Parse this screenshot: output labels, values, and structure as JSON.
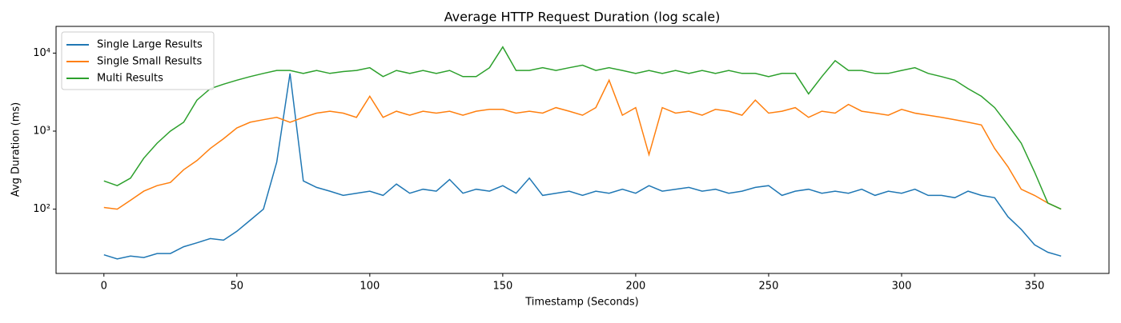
{
  "chart_data": {
    "type": "line",
    "title": "Average HTTP Request Duration (log scale)",
    "x_label": "Timestamp (Seconds)",
    "y_label": "Avg Duration (ms)",
    "x": [
      0,
      5,
      10,
      15,
      20,
      25,
      30,
      35,
      40,
      45,
      50,
      55,
      60,
      65,
      70,
      75,
      80,
      85,
      90,
      95,
      100,
      105,
      110,
      115,
      120,
      125,
      130,
      135,
      140,
      145,
      150,
      155,
      160,
      165,
      170,
      175,
      180,
      185,
      190,
      195,
      200,
      205,
      210,
      215,
      220,
      225,
      230,
      235,
      240,
      245,
      250,
      255,
      260,
      265,
      270,
      275,
      280,
      285,
      290,
      295,
      300,
      305,
      310,
      315,
      320,
      325,
      330,
      335,
      340,
      345,
      350,
      355,
      360
    ],
    "series": [
      {
        "name": "Single Large Results",
        "color": "#1f77b4",
        "values": [
          26,
          23,
          25,
          24,
          27,
          27,
          33,
          37,
          42,
          40,
          52,
          72,
          100,
          400,
          5500,
          230,
          190,
          170,
          150,
          160,
          170,
          150,
          210,
          160,
          180,
          170,
          240,
          160,
          180,
          170,
          200,
          160,
          250,
          150,
          160,
          170,
          150,
          170,
          160,
          180,
          160,
          200,
          170,
          180,
          190,
          170,
          180,
          160,
          170,
          190,
          200,
          150,
          170,
          180,
          160,
          170,
          160,
          180,
          150,
          170,
          160,
          180,
          150,
          150,
          140,
          170,
          150,
          140,
          80,
          55,
          35,
          28,
          25
        ]
      },
      {
        "name": "Single Small Results",
        "color": "#ff7f0e",
        "values": [
          105,
          100,
          130,
          170,
          200,
          220,
          320,
          420,
          600,
          800,
          1100,
          1300,
          1400,
          1500,
          1300,
          1500,
          1700,
          1800,
          1700,
          1500,
          2800,
          1500,
          1800,
          1600,
          1800,
          1700,
          1800,
          1600,
          1800,
          1900,
          1900,
          1700,
          1800,
          1700,
          2000,
          1800,
          1600,
          2000,
          4500,
          1600,
          2000,
          500,
          2000,
          1700,
          1800,
          1600,
          1900,
          1800,
          1600,
          2500,
          1700,
          1800,
          2000,
          1500,
          1800,
          1700,
          2200,
          1800,
          1700,
          1600,
          1900,
          1700,
          1600,
          1500,
          1400,
          1300,
          1200,
          600,
          350,
          180,
          150,
          120,
          100
        ]
      },
      {
        "name": "Multi Results",
        "color": "#2ca02c",
        "values": [
          230,
          200,
          250,
          450,
          700,
          1000,
          1300,
          2500,
          3500,
          4000,
          4500,
          5000,
          5500,
          6000,
          6000,
          5500,
          6000,
          5500,
          5800,
          6000,
          6500,
          5000,
          6000,
          5500,
          6000,
          5500,
          6000,
          5000,
          5000,
          6500,
          12000,
          6000,
          6000,
          6500,
          6000,
          6500,
          7000,
          6000,
          6500,
          6000,
          5500,
          6000,
          5500,
          6000,
          5500,
          6000,
          5500,
          6000,
          5500,
          5500,
          5000,
          5500,
          5500,
          3000,
          5000,
          8000,
          6000,
          6000,
          5500,
          5500,
          6000,
          6500,
          5500,
          5000,
          4500,
          3500,
          2800,
          2000,
          1200,
          700,
          300,
          120,
          100
        ]
      }
    ],
    "xlim": [
      -18,
      378
    ],
    "xticks": [
      0,
      50,
      100,
      150,
      200,
      250,
      300,
      350
    ],
    "ylim": [
      15,
      22000
    ],
    "yscale": "log",
    "yticks": [
      {
        "value": 100,
        "label": "10²"
      },
      {
        "value": 1000,
        "label": "10³"
      },
      {
        "value": 10000,
        "label": "10⁴"
      }
    ],
    "grid": false,
    "legend": "upper left"
  }
}
